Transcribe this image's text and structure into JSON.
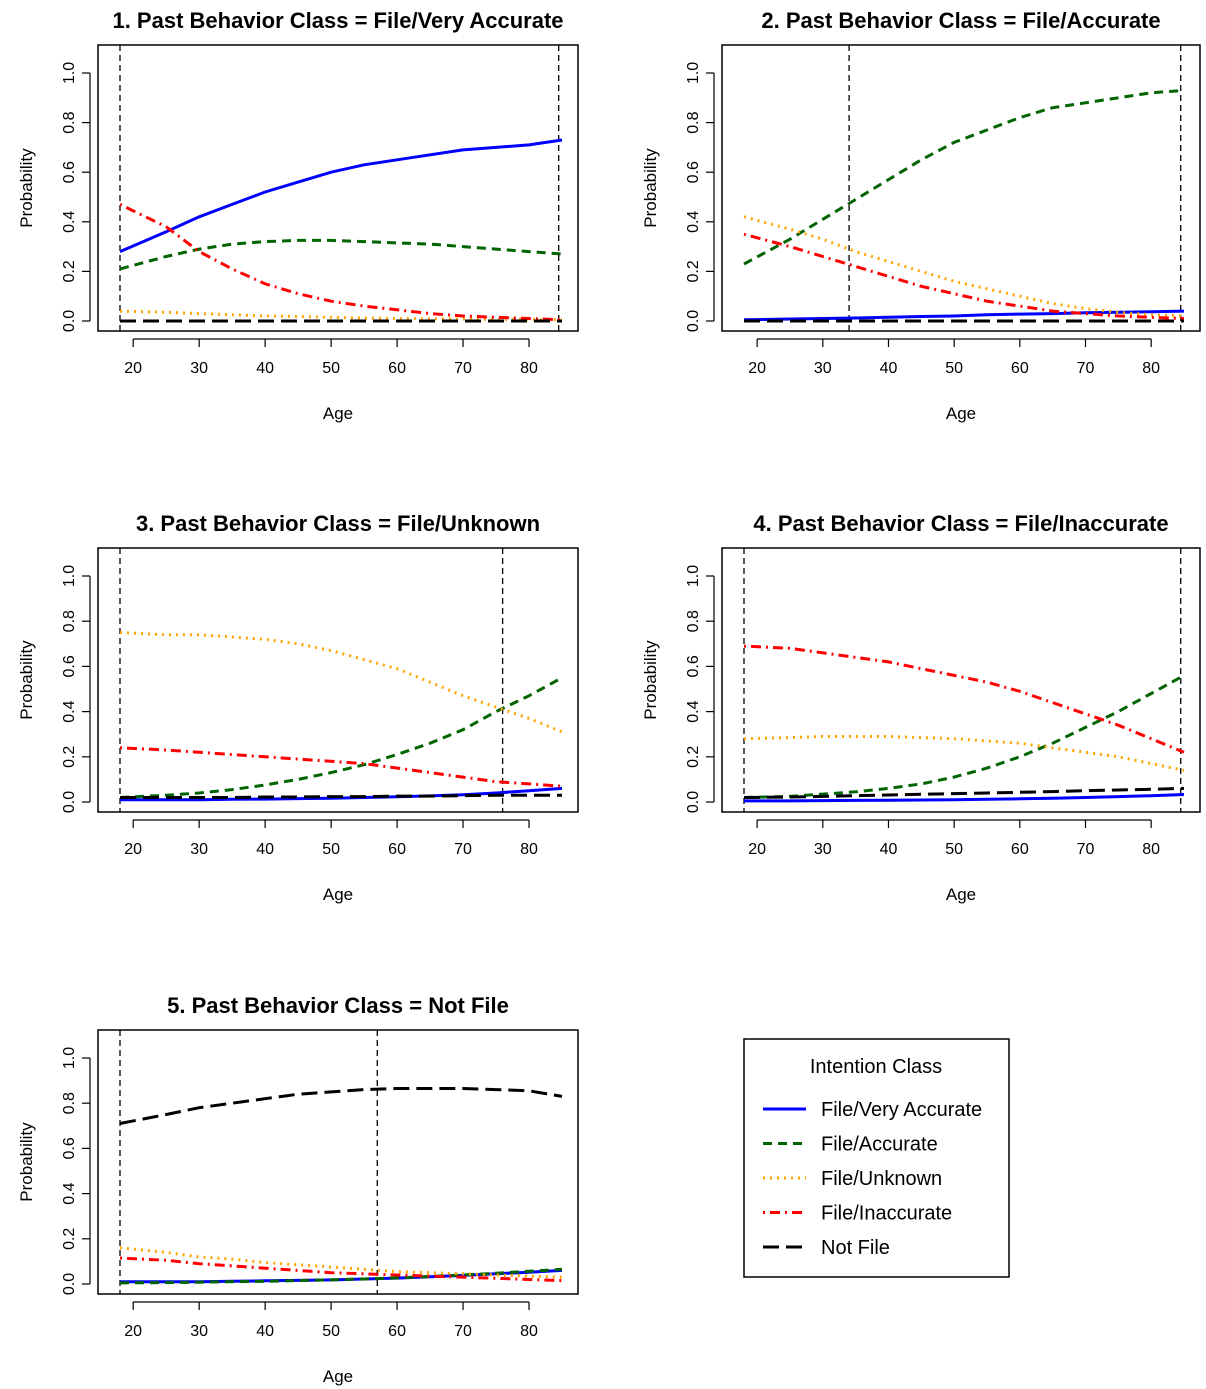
{
  "figure": {
    "legend": {
      "title": "Intention Class",
      "placement": "bottom-right",
      "entries": [
        {
          "key": "very_accurate",
          "label": "File/Very Accurate"
        },
        {
          "key": "accurate",
          "label": "File/Accurate"
        },
        {
          "key": "unknown",
          "label": "File/Unknown"
        },
        {
          "key": "inaccurate",
          "label": "File/Inaccurate"
        },
        {
          "key": "not_file",
          "label": "Not File"
        }
      ]
    },
    "series_styles": {
      "very_accurate": {
        "color": "#0000ff",
        "dash": "solid"
      },
      "accurate": {
        "color": "#006400",
        "dash": "dashed"
      },
      "unknown": {
        "color": "#ffa500",
        "dash": "dotted"
      },
      "inaccurate": {
        "color": "#ff0000",
        "dash": "dotdash"
      },
      "not_file": {
        "color": "#000000",
        "dash": "longdash"
      }
    }
  },
  "chart_data": [
    {
      "type": "line",
      "title": "1. Past Behavior Class = File/Very Accurate",
      "xlabel": "Age",
      "ylabel": "Probability",
      "xlim": [
        18,
        85
      ],
      "ylim": [
        0,
        1
      ],
      "xticks": [
        "20",
        "30",
        "40",
        "50",
        "60",
        "70",
        "80"
      ],
      "yticks": [
        "0.0",
        "0.2",
        "0.4",
        "0.6",
        "0.8",
        "1.0"
      ],
      "vlines": [
        18,
        84.5
      ],
      "x": [
        18,
        25,
        30,
        35,
        40,
        45,
        50,
        55,
        60,
        65,
        70,
        75,
        80,
        85
      ],
      "series": [
        {
          "key": "very_accurate",
          "values": [
            0.28,
            0.36,
            0.42,
            0.47,
            0.52,
            0.56,
            0.6,
            0.63,
            0.65,
            0.67,
            0.69,
            0.7,
            0.71,
            0.73
          ]
        },
        {
          "key": "accurate",
          "values": [
            0.21,
            0.26,
            0.29,
            0.31,
            0.32,
            0.325,
            0.325,
            0.32,
            0.315,
            0.31,
            0.3,
            0.29,
            0.28,
            0.27
          ]
        },
        {
          "key": "unknown",
          "values": [
            0.04,
            0.035,
            0.03,
            0.025,
            0.02,
            0.018,
            0.015,
            0.012,
            0.01,
            0.009,
            0.008,
            0.007,
            0.006,
            0.005
          ]
        },
        {
          "key": "inaccurate",
          "values": [
            0.47,
            0.38,
            0.28,
            0.21,
            0.15,
            0.11,
            0.08,
            0.06,
            0.045,
            0.03,
            0.02,
            0.015,
            0.01,
            0.005
          ]
        },
        {
          "key": "not_file",
          "values": [
            0.0,
            0.0,
            0.0,
            0.0,
            0.0,
            0.0,
            0.0,
            0.0,
            0.0,
            0.0,
            0.0,
            0.0,
            0.0,
            0.0
          ]
        }
      ]
    },
    {
      "type": "line",
      "title": "2. Past Behavior Class = File/Accurate",
      "xlabel": "Age",
      "ylabel": "Probability",
      "xlim": [
        18,
        85
      ],
      "ylim": [
        0,
        1
      ],
      "xticks": [
        "20",
        "30",
        "40",
        "50",
        "60",
        "70",
        "80"
      ],
      "yticks": [
        "0.0",
        "0.2",
        "0.4",
        "0.6",
        "0.8",
        "1.0"
      ],
      "vlines": [
        34,
        84.5
      ],
      "x": [
        18,
        25,
        30,
        35,
        40,
        45,
        50,
        55,
        60,
        65,
        70,
        75,
        80,
        85
      ],
      "series": [
        {
          "key": "very_accurate",
          "values": [
            0.005,
            0.008,
            0.01,
            0.012,
            0.015,
            0.018,
            0.02,
            0.025,
            0.028,
            0.03,
            0.033,
            0.035,
            0.037,
            0.04
          ]
        },
        {
          "key": "accurate",
          "values": [
            0.23,
            0.33,
            0.41,
            0.49,
            0.57,
            0.65,
            0.72,
            0.77,
            0.82,
            0.86,
            0.88,
            0.9,
            0.92,
            0.93
          ]
        },
        {
          "key": "unknown",
          "values": [
            0.42,
            0.37,
            0.33,
            0.28,
            0.24,
            0.2,
            0.16,
            0.13,
            0.1,
            0.07,
            0.05,
            0.035,
            0.025,
            0.02
          ]
        },
        {
          "key": "inaccurate",
          "values": [
            0.35,
            0.3,
            0.26,
            0.22,
            0.18,
            0.14,
            0.11,
            0.08,
            0.06,
            0.04,
            0.03,
            0.02,
            0.015,
            0.01
          ]
        },
        {
          "key": "not_file",
          "values": [
            0.0,
            0.0,
            0.0,
            0.0,
            0.0,
            0.0,
            0.0,
            0.0,
            0.0,
            0.0,
            0.0,
            0.0,
            0.0,
            0.0
          ]
        }
      ]
    },
    {
      "type": "line",
      "title": "3. Past Behavior Class = File/Unknown",
      "xlabel": "Age",
      "ylabel": "Probability",
      "xlim": [
        18,
        85
      ],
      "ylim": [
        0,
        1
      ],
      "xticks": [
        "20",
        "30",
        "40",
        "50",
        "60",
        "70",
        "80"
      ],
      "yticks": [
        "0.0",
        "0.2",
        "0.4",
        "0.6",
        "0.8",
        "1.0"
      ],
      "vlines": [
        18,
        76
      ],
      "x": [
        18,
        25,
        30,
        35,
        40,
        45,
        50,
        55,
        60,
        65,
        70,
        75,
        80,
        85
      ],
      "series": [
        {
          "key": "very_accurate",
          "values": [
            0.01,
            0.01,
            0.01,
            0.012,
            0.013,
            0.015,
            0.017,
            0.02,
            0.023,
            0.027,
            0.032,
            0.04,
            0.05,
            0.06
          ]
        },
        {
          "key": "accurate",
          "values": [
            0.02,
            0.03,
            0.04,
            0.055,
            0.075,
            0.1,
            0.13,
            0.165,
            0.21,
            0.26,
            0.32,
            0.4,
            0.47,
            0.55
          ]
        },
        {
          "key": "unknown",
          "values": [
            0.75,
            0.74,
            0.74,
            0.73,
            0.72,
            0.7,
            0.67,
            0.63,
            0.59,
            0.53,
            0.47,
            0.42,
            0.37,
            0.31
          ]
        },
        {
          "key": "inaccurate",
          "values": [
            0.24,
            0.23,
            0.22,
            0.21,
            0.2,
            0.19,
            0.18,
            0.17,
            0.15,
            0.13,
            0.11,
            0.09,
            0.08,
            0.07
          ]
        },
        {
          "key": "not_file",
          "values": [
            0.02,
            0.02,
            0.02,
            0.02,
            0.022,
            0.022,
            0.024,
            0.024,
            0.026,
            0.026,
            0.028,
            0.03,
            0.03,
            0.03
          ]
        }
      ]
    },
    {
      "type": "line",
      "title": "4. Past Behavior Class = File/Inaccurate",
      "xlabel": "Age",
      "ylabel": "Probability",
      "xlim": [
        18,
        85
      ],
      "ylim": [
        0,
        1
      ],
      "xticks": [
        "20",
        "30",
        "40",
        "50",
        "60",
        "70",
        "80"
      ],
      "yticks": [
        "0.0",
        "0.2",
        "0.4",
        "0.6",
        "0.8",
        "1.0"
      ],
      "vlines": [
        18,
        84.5
      ],
      "x": [
        18,
        25,
        30,
        35,
        40,
        45,
        50,
        55,
        60,
        65,
        70,
        75,
        80,
        85
      ],
      "series": [
        {
          "key": "very_accurate",
          "values": [
            0.005,
            0.005,
            0.006,
            0.007,
            0.008,
            0.009,
            0.01,
            0.012,
            0.014,
            0.017,
            0.02,
            0.024,
            0.028,
            0.033
          ]
        },
        {
          "key": "accurate",
          "values": [
            0.02,
            0.025,
            0.035,
            0.045,
            0.06,
            0.08,
            0.11,
            0.15,
            0.2,
            0.26,
            0.33,
            0.4,
            0.48,
            0.56
          ]
        },
        {
          "key": "unknown",
          "values": [
            0.28,
            0.285,
            0.29,
            0.29,
            0.29,
            0.285,
            0.28,
            0.27,
            0.26,
            0.24,
            0.22,
            0.2,
            0.17,
            0.14
          ]
        },
        {
          "key": "inaccurate",
          "values": [
            0.69,
            0.68,
            0.66,
            0.64,
            0.62,
            0.59,
            0.56,
            0.53,
            0.49,
            0.44,
            0.39,
            0.34,
            0.28,
            0.22
          ]
        },
        {
          "key": "not_file",
          "values": [
            0.02,
            0.022,
            0.025,
            0.028,
            0.031,
            0.034,
            0.037,
            0.04,
            0.043,
            0.046,
            0.05,
            0.053,
            0.056,
            0.06
          ]
        }
      ]
    },
    {
      "type": "line",
      "title": "5. Past Behavior Class = Not File",
      "xlabel": "Age",
      "ylabel": "Probability",
      "xlim": [
        18,
        85
      ],
      "ylim": [
        0,
        1
      ],
      "xticks": [
        "20",
        "30",
        "40",
        "50",
        "60",
        "70",
        "80"
      ],
      "yticks": [
        "0.0",
        "0.2",
        "0.4",
        "0.6",
        "0.8",
        "1.0"
      ],
      "vlines": [
        18,
        57
      ],
      "x": [
        18,
        25,
        30,
        35,
        40,
        45,
        50,
        55,
        60,
        65,
        70,
        75,
        80,
        85
      ],
      "series": [
        {
          "key": "very_accurate",
          "values": [
            0.01,
            0.01,
            0.01,
            0.012,
            0.014,
            0.016,
            0.018,
            0.022,
            0.026,
            0.032,
            0.038,
            0.045,
            0.052,
            0.06
          ]
        },
        {
          "key": "accurate",
          "values": [
            0.005,
            0.006,
            0.008,
            0.01,
            0.012,
            0.015,
            0.018,
            0.022,
            0.027,
            0.033,
            0.04,
            0.048,
            0.056,
            0.065
          ]
        },
        {
          "key": "unknown",
          "values": [
            0.16,
            0.14,
            0.12,
            0.11,
            0.095,
            0.085,
            0.075,
            0.065,
            0.055,
            0.05,
            0.045,
            0.04,
            0.035,
            0.03
          ]
        },
        {
          "key": "inaccurate",
          "values": [
            0.115,
            0.105,
            0.09,
            0.08,
            0.07,
            0.06,
            0.05,
            0.045,
            0.04,
            0.035,
            0.03,
            0.025,
            0.02,
            0.015
          ]
        },
        {
          "key": "not_file",
          "values": [
            0.71,
            0.75,
            0.78,
            0.8,
            0.82,
            0.84,
            0.85,
            0.86,
            0.865,
            0.865,
            0.865,
            0.86,
            0.855,
            0.83
          ]
        }
      ]
    }
  ]
}
